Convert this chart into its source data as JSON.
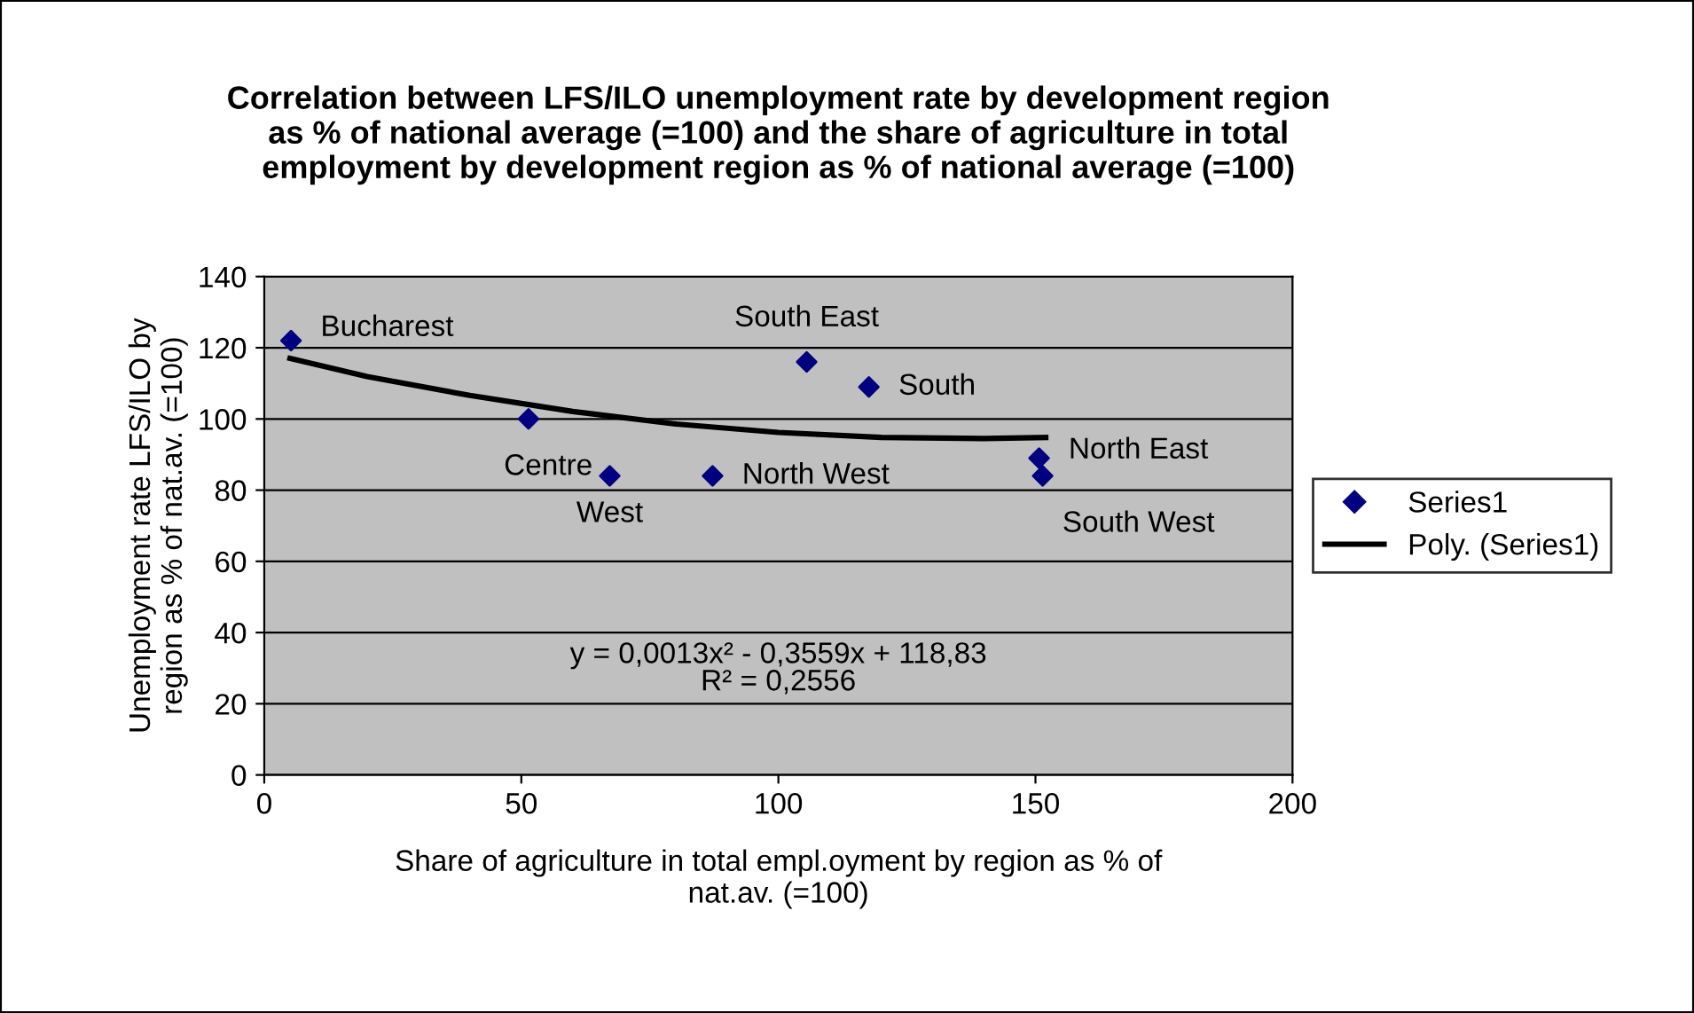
{
  "chart_data": {
    "type": "scatter",
    "title": "Correlation between LFS/ILO unemployment rate by development region\nas % of national average (=100) and the share of agriculture in total\nemployment by development region as % of national average (=100)",
    "xlabel": "Share of agriculture in total empl.oyment by region as % of\nnat.av. (=100)",
    "ylabel": "Unemployment rate LFS/ILO by\nregion as % of nat.av. (=100)",
    "series": [
      {
        "name": "Series1",
        "color": "#000080",
        "marker": "diamond",
        "x": [
          5.2,
          51.4,
          67.2,
          87.2,
          105.5,
          117.6,
          150.7,
          151.4
        ],
        "values": [
          122,
          100,
          84,
          84,
          116,
          109,
          89,
          84
        ]
      },
      {
        "name": "Poly. (Series1)",
        "type": "line",
        "color": "#000000",
        "marker": "none",
        "line_style": "solid",
        "x": [
          5,
          20,
          40,
          60,
          80,
          100,
          120,
          140,
          152
        ],
        "values": [
          117,
          111.9,
          106.6,
          102.1,
          98.6,
          96.2,
          94.8,
          94.5,
          94.8
        ]
      }
    ],
    "annotations": [
      {
        "text": "Bucharest",
        "x": 5.2,
        "y": 122
      },
      {
        "text": "Centre",
        "x": 51.4,
        "y": 100
      },
      {
        "text": "West",
        "x": 67.2,
        "y": 84
      },
      {
        "text": "North West",
        "x": 87.2,
        "y": 84
      },
      {
        "text": "South East",
        "x": 105.5,
        "y": 116
      },
      {
        "text": "South",
        "x": 117.6,
        "y": 109
      },
      {
        "text": "North East",
        "x": 150.7,
        "y": 89
      },
      {
        "text": "South West",
        "x": 151.4,
        "y": 84
      },
      "y = 0,0013x² - 0,3559x + 118,83",
      "R² = 0,2556"
    ],
    "xlim": [
      0,
      200
    ],
    "xticks": [
      0,
      50,
      100,
      150,
      200
    ],
    "ylim": [
      0,
      140
    ],
    "yticks": [
      0,
      20,
      40,
      60,
      80,
      100,
      120,
      140
    ],
    "grid": "y",
    "legend": "right"
  }
}
